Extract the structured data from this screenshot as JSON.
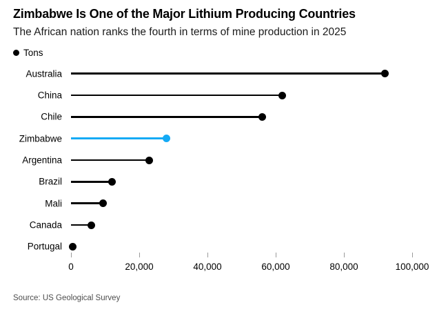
{
  "header": {
    "title": "Zimbabwe Is One of the Major Lithium Producing Countries",
    "subtitle": "The African nation ranks the fourth in terms of mine production in 2025"
  },
  "legend": {
    "label": "Tons",
    "marker_color": "#000000"
  },
  "chart_data": {
    "type": "lollipop",
    "title": "Zimbabwe Is One of the Major Lithium Producing Countries",
    "subtitle": "The African nation ranks the fourth in terms of mine production in 2025",
    "unit": "Tons",
    "categories": [
      "Australia",
      "China",
      "Chile",
      "Zimbabwe",
      "Argentina",
      "Brazil",
      "Mali",
      "Canada",
      "Portugal"
    ],
    "values": [
      92000,
      62000,
      56000,
      28000,
      23000,
      12000,
      9300,
      6000,
      500
    ],
    "highlight_category": "Zimbabwe",
    "highlight_color": "#14aaf5",
    "default_color": "#000000",
    "xlim": [
      0,
      100000
    ],
    "x_ticks": [
      0,
      20000,
      40000,
      60000,
      80000,
      100000
    ],
    "x_tick_labels": [
      "0",
      "20,000",
      "40,000",
      "60,000",
      "80,000",
      "100,000"
    ],
    "grid": false,
    "legend_position": "top-left",
    "orientation": "horizontal"
  },
  "footer": {
    "source": "Source: US Geological Survey"
  }
}
